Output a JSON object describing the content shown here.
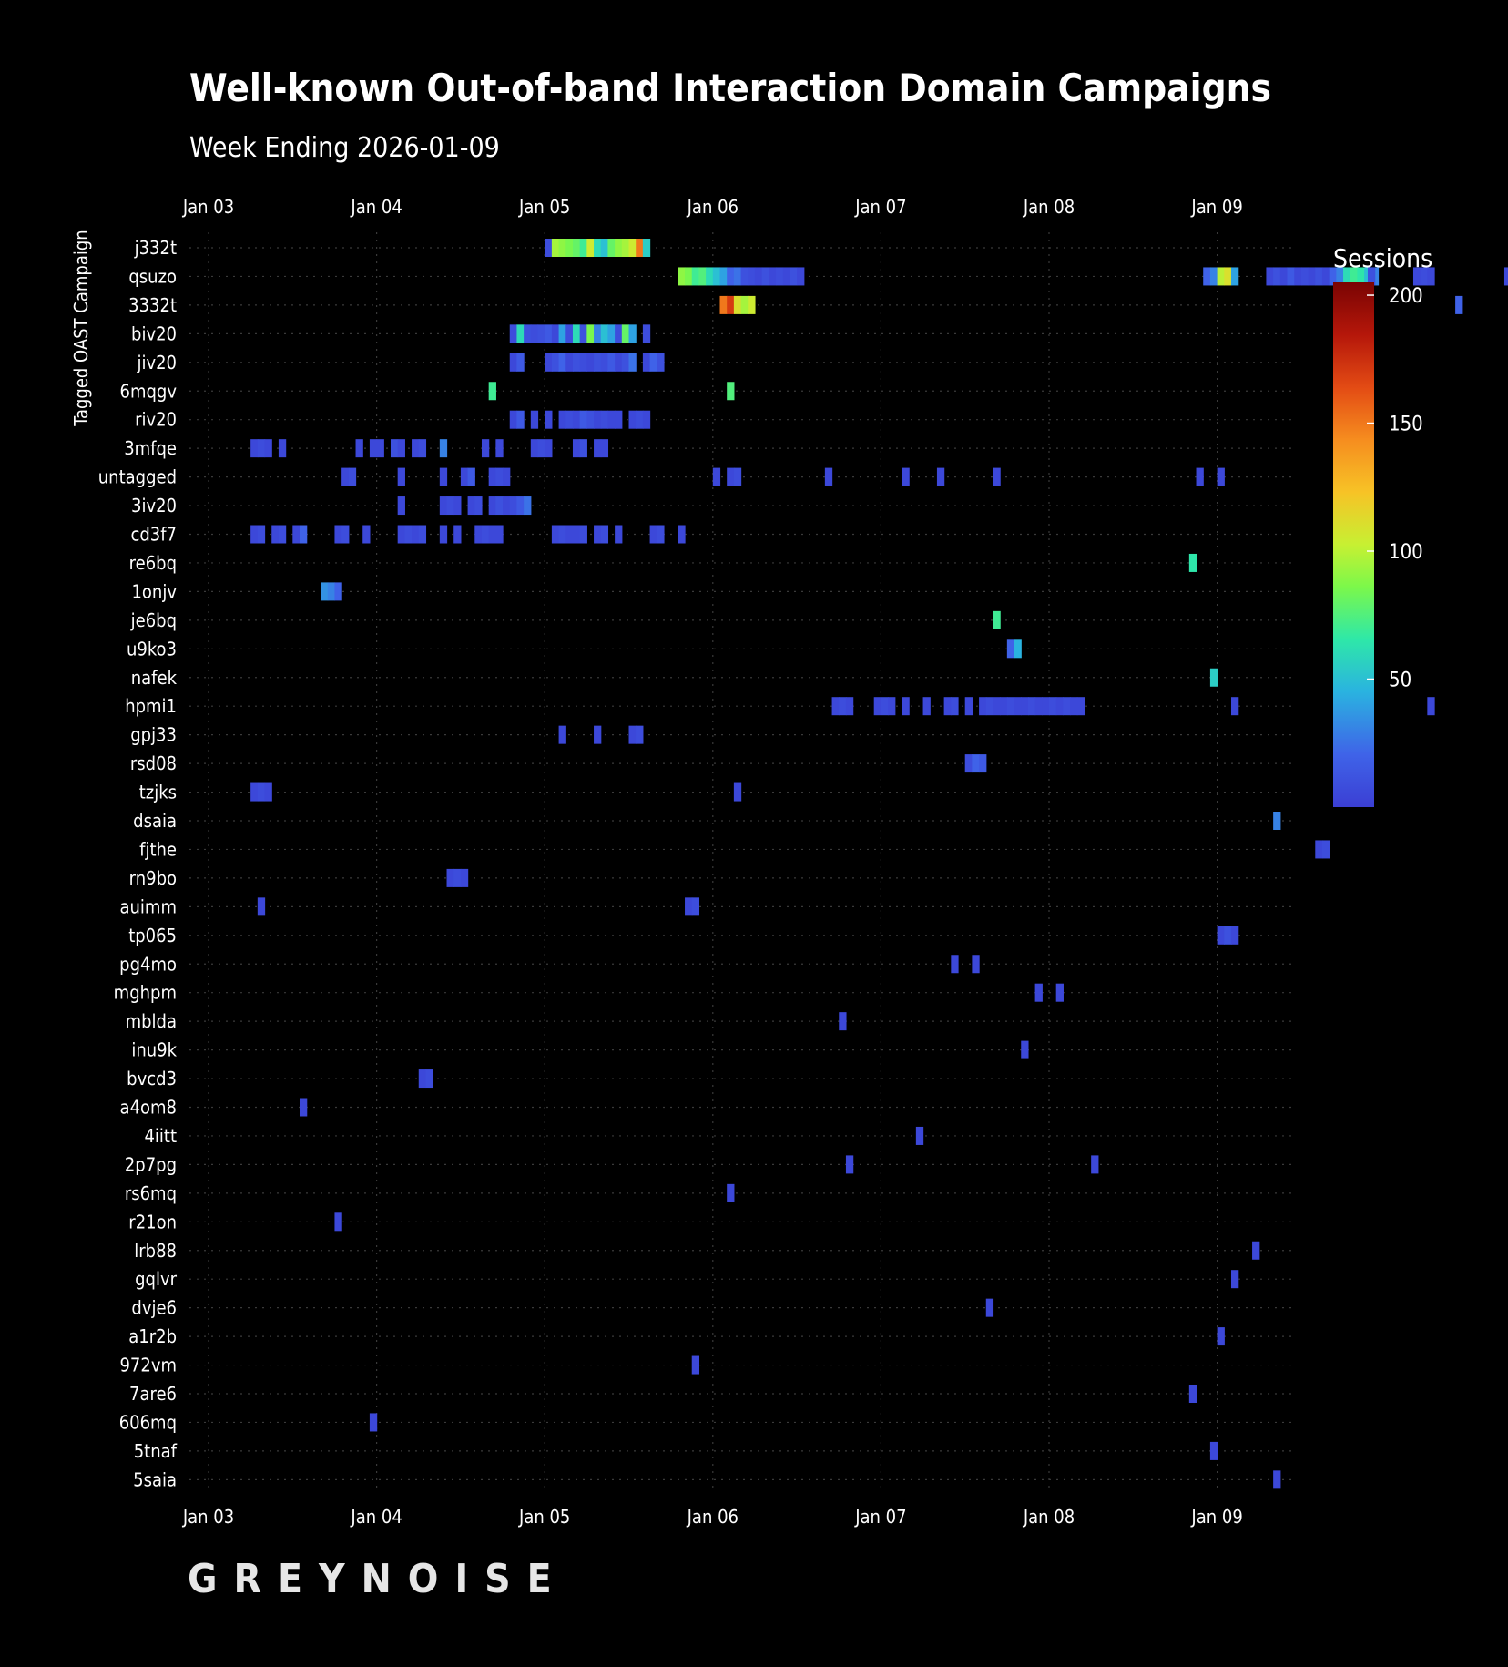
{
  "chart_data": {
    "type": "heatmap",
    "title": "Well-known Out-of-band Interaction Domain Campaigns",
    "subtitle": "Week Ending 2026-01-09",
    "ylabel": "Tagged OAST Campaign",
    "colorbar_label": "Sessions",
    "colorbar_ticks": [
      50,
      100,
      150,
      200
    ],
    "colorbar_range": [
      0,
      205
    ],
    "x_tick_labels": [
      "Jan 03",
      "Jan 04",
      "Jan 05",
      "Jan 06",
      "Jan 07",
      "Jan 08",
      "Jan 09"
    ],
    "x_range_hours": [
      -8,
      170
    ],
    "interval_hours": 1,
    "grid": true,
    "brand": "GREYNOISE",
    "campaigns": [
      {
        "name": "j332t",
        "cells": [
          [
            48,
            8
          ],
          [
            49,
            95
          ],
          [
            50,
            90
          ],
          [
            51,
            85
          ],
          [
            52,
            80
          ],
          [
            53,
            70
          ],
          [
            54,
            105
          ],
          [
            55,
            60
          ],
          [
            56,
            50
          ],
          [
            57,
            80
          ],
          [
            58,
            90
          ],
          [
            59,
            95
          ],
          [
            60,
            105
          ],
          [
            61,
            150
          ],
          [
            62,
            55
          ]
        ]
      },
      {
        "name": "qsuzo",
        "cells": [
          [
            67,
            90
          ],
          [
            68,
            85
          ],
          [
            69,
            70
          ],
          [
            70,
            75
          ],
          [
            71,
            60
          ],
          [
            72,
            50
          ],
          [
            73,
            40
          ],
          [
            74,
            20
          ],
          [
            75,
            25
          ],
          [
            76,
            10
          ],
          [
            77,
            8
          ],
          [
            78,
            5
          ],
          [
            79,
            10
          ],
          [
            80,
            5
          ],
          [
            81,
            8
          ],
          [
            82,
            5
          ],
          [
            83,
            10
          ],
          [
            84,
            5
          ],
          [
            142,
            20
          ],
          [
            143,
            30
          ],
          [
            144,
            100
          ],
          [
            145,
            110
          ],
          [
            146,
            40
          ],
          [
            151,
            5
          ],
          [
            152,
            10
          ],
          [
            153,
            5
          ],
          [
            154,
            15
          ],
          [
            155,
            5
          ],
          [
            156,
            8
          ],
          [
            157,
            5
          ],
          [
            158,
            10
          ],
          [
            159,
            5
          ],
          [
            160,
            20
          ],
          [
            161,
            30
          ],
          [
            162,
            60
          ],
          [
            163,
            70
          ],
          [
            164,
            65
          ],
          [
            165,
            50
          ],
          [
            166,
            30
          ],
          [
            165.5,
            10
          ],
          [
            172,
            5
          ],
          [
            173,
            8
          ],
          [
            174,
            5
          ],
          [
            185,
            5
          ],
          [
            186,
            8
          ]
        ]
      },
      {
        "name": "3332t",
        "cells": [
          [
            73,
            150
          ],
          [
            74,
            170
          ],
          [
            75,
            110
          ],
          [
            76,
            95
          ],
          [
            77,
            105
          ],
          [
            178,
            20
          ]
        ]
      },
      {
        "name": "biv20",
        "cells": [
          [
            43,
            8
          ],
          [
            44,
            60
          ],
          [
            45,
            10
          ],
          [
            46,
            8
          ],
          [
            47,
            10
          ],
          [
            48,
            15
          ],
          [
            49,
            5
          ],
          [
            50,
            40
          ],
          [
            51,
            8
          ],
          [
            52,
            60
          ],
          [
            53,
            10
          ],
          [
            54,
            85
          ],
          [
            55,
            30
          ],
          [
            56,
            50
          ],
          [
            57,
            40
          ],
          [
            58,
            8
          ],
          [
            59,
            80
          ],
          [
            60,
            40
          ],
          [
            62,
            8
          ]
        ]
      },
      {
        "name": "jiv20",
        "cells": [
          [
            43,
            5
          ],
          [
            44,
            15
          ],
          [
            48,
            5
          ],
          [
            49,
            10
          ],
          [
            50,
            20
          ],
          [
            51,
            5
          ],
          [
            52,
            10
          ],
          [
            53,
            8
          ],
          [
            54,
            5
          ],
          [
            55,
            10
          ],
          [
            56,
            8
          ],
          [
            57,
            15
          ],
          [
            58,
            5
          ],
          [
            59,
            10
          ],
          [
            60,
            25
          ],
          [
            62,
            5
          ],
          [
            63,
            20
          ],
          [
            64,
            10
          ]
        ]
      },
      {
        "name": "6mqgv",
        "cells": [
          [
            40,
            70
          ],
          [
            74,
            75
          ]
        ]
      },
      {
        "name": "riv20",
        "cells": [
          [
            43,
            5
          ],
          [
            44,
            15
          ],
          [
            46,
            5
          ],
          [
            48,
            5
          ],
          [
            50,
            5
          ],
          [
            51,
            8
          ],
          [
            52,
            5
          ],
          [
            53,
            15
          ],
          [
            54,
            10
          ],
          [
            55,
            5
          ],
          [
            56,
            8
          ],
          [
            57,
            5
          ],
          [
            58,
            5
          ],
          [
            60,
            5
          ],
          [
            61,
            8
          ],
          [
            62,
            5
          ]
        ]
      },
      {
        "name": "3mfqe",
        "cells": [
          [
            6,
            5
          ],
          [
            7,
            8
          ],
          [
            8,
            5
          ],
          [
            10,
            5
          ],
          [
            21,
            5
          ],
          [
            23,
            5
          ],
          [
            24,
            5
          ],
          [
            26,
            10
          ],
          [
            27,
            5
          ],
          [
            29,
            5
          ],
          [
            30,
            8
          ],
          [
            33,
            30
          ],
          [
            39,
            5
          ],
          [
            41,
            5
          ],
          [
            46,
            5
          ],
          [
            47,
            8
          ],
          [
            48,
            5
          ],
          [
            52,
            5
          ],
          [
            53,
            10
          ],
          [
            55,
            5
          ],
          [
            56,
            5
          ]
        ]
      },
      {
        "name": "untagged",
        "cells": [
          [
            19,
            5
          ],
          [
            20,
            8
          ],
          [
            27,
            5
          ],
          [
            33,
            5
          ],
          [
            36,
            5
          ],
          [
            37,
            15
          ],
          [
            40,
            5
          ],
          [
            41,
            8
          ],
          [
            42,
            5
          ],
          [
            72,
            5
          ],
          [
            74,
            5
          ],
          [
            75,
            8
          ],
          [
            88,
            5
          ],
          [
            99,
            5
          ],
          [
            104,
            5
          ],
          [
            112,
            5
          ],
          [
            141,
            5
          ],
          [
            144,
            5
          ]
        ]
      },
      {
        "name": "3iv20",
        "cells": [
          [
            27,
            5
          ],
          [
            33,
            5
          ],
          [
            34,
            8
          ],
          [
            35,
            5
          ],
          [
            37,
            5
          ],
          [
            38,
            8
          ],
          [
            40,
            5
          ],
          [
            41,
            10
          ],
          [
            42,
            5
          ],
          [
            43,
            8
          ],
          [
            44,
            15
          ],
          [
            45,
            25
          ]
        ]
      },
      {
        "name": "cd3f7",
        "cells": [
          [
            6,
            5
          ],
          [
            7,
            8
          ],
          [
            9,
            5
          ],
          [
            10,
            8
          ],
          [
            12,
            5
          ],
          [
            13,
            20
          ],
          [
            18,
            5
          ],
          [
            19,
            8
          ],
          [
            22,
            5
          ],
          [
            27,
            5
          ],
          [
            28,
            8
          ],
          [
            29,
            5
          ],
          [
            30,
            8
          ],
          [
            33,
            5
          ],
          [
            35,
            5
          ],
          [
            38,
            5
          ],
          [
            39,
            8
          ],
          [
            40,
            5
          ],
          [
            41,
            5
          ],
          [
            49,
            5
          ],
          [
            50,
            8
          ],
          [
            51,
            5
          ],
          [
            52,
            5
          ],
          [
            53,
            8
          ],
          [
            55,
            5
          ],
          [
            56,
            8
          ],
          [
            58,
            5
          ],
          [
            63,
            5
          ],
          [
            64,
            8
          ],
          [
            67,
            5
          ]
        ]
      },
      {
        "name": "re6bq",
        "cells": [
          [
            140,
            65
          ]
        ]
      },
      {
        "name": "1onjv",
        "cells": [
          [
            16,
            35
          ],
          [
            17,
            30
          ],
          [
            18,
            20
          ]
        ]
      },
      {
        "name": "je6bq",
        "cells": [
          [
            112,
            70
          ]
        ]
      },
      {
        "name": "u9ko3",
        "cells": [
          [
            114,
            20
          ],
          [
            115,
            45
          ]
        ]
      },
      {
        "name": "nafek",
        "cells": [
          [
            143,
            55
          ]
        ]
      },
      {
        "name": "hpmi1",
        "cells": [
          [
            89,
            5
          ],
          [
            90,
            8
          ],
          [
            91,
            5
          ],
          [
            95,
            5
          ],
          [
            96,
            8
          ],
          [
            97,
            5
          ],
          [
            99,
            5
          ],
          [
            102,
            5
          ],
          [
            105,
            5
          ],
          [
            106,
            8
          ],
          [
            108,
            5
          ],
          [
            110,
            5
          ],
          [
            111,
            8
          ],
          [
            112,
            5
          ],
          [
            113,
            5
          ],
          [
            114,
            8
          ],
          [
            115,
            5
          ],
          [
            116,
            5
          ],
          [
            117,
            8
          ],
          [
            118,
            5
          ],
          [
            119,
            5
          ],
          [
            120,
            8
          ],
          [
            121,
            5
          ],
          [
            122,
            8
          ],
          [
            123,
            5
          ],
          [
            124,
            5
          ],
          [
            146,
            5
          ],
          [
            174,
            5
          ]
        ]
      },
      {
        "name": "gpj33",
        "cells": [
          [
            50,
            5
          ],
          [
            55,
            5
          ],
          [
            60,
            5
          ],
          [
            61,
            8
          ]
        ]
      },
      {
        "name": "rsd08",
        "cells": [
          [
            108,
            8
          ],
          [
            109,
            20
          ],
          [
            110,
            15
          ]
        ]
      },
      {
        "name": "tzjks",
        "cells": [
          [
            6,
            5
          ],
          [
            7,
            8
          ],
          [
            8,
            5
          ],
          [
            75,
            5
          ]
        ]
      },
      {
        "name": "dsaia",
        "cells": [
          [
            152,
            30
          ]
        ]
      },
      {
        "name": "fjthe",
        "cells": [
          [
            158,
            5
          ],
          [
            159,
            8
          ]
        ]
      },
      {
        "name": "rn9bo",
        "cells": [
          [
            34,
            5
          ],
          [
            35,
            8
          ],
          [
            36,
            5
          ]
        ]
      },
      {
        "name": "auimm",
        "cells": [
          [
            7,
            5
          ],
          [
            68,
            5
          ],
          [
            69,
            8
          ]
        ]
      },
      {
        "name": "tp065",
        "cells": [
          [
            144,
            5
          ],
          [
            145,
            10
          ],
          [
            146,
            5
          ]
        ]
      },
      {
        "name": "pg4mo",
        "cells": [
          [
            106,
            5
          ],
          [
            109,
            5
          ]
        ]
      },
      {
        "name": "mghpm",
        "cells": [
          [
            118,
            5
          ],
          [
            121,
            5
          ]
        ]
      },
      {
        "name": "mblda",
        "cells": [
          [
            90,
            5
          ]
        ]
      },
      {
        "name": "inu9k",
        "cells": [
          [
            116,
            5
          ]
        ]
      },
      {
        "name": "bvcd3",
        "cells": [
          [
            30,
            5
          ],
          [
            31,
            8
          ]
        ]
      },
      {
        "name": "a4om8",
        "cells": [
          [
            13,
            5
          ]
        ]
      },
      {
        "name": "4iitt",
        "cells": [
          [
            101,
            5
          ]
        ]
      },
      {
        "name": "2p7pg",
        "cells": [
          [
            91,
            5
          ],
          [
            126,
            5
          ]
        ]
      },
      {
        "name": "rs6mq",
        "cells": [
          [
            74,
            5
          ]
        ]
      },
      {
        "name": "r21on",
        "cells": [
          [
            18,
            5
          ]
        ]
      },
      {
        "name": "lrb88",
        "cells": [
          [
            149,
            5
          ]
        ]
      },
      {
        "name": "gqlvr",
        "cells": [
          [
            146,
            5
          ]
        ]
      },
      {
        "name": "dvje6",
        "cells": [
          [
            111,
            5
          ]
        ]
      },
      {
        "name": "a1r2b",
        "cells": [
          [
            144,
            5
          ]
        ]
      },
      {
        "name": "972vm",
        "cells": [
          [
            69,
            5
          ]
        ]
      },
      {
        "name": "7are6",
        "cells": [
          [
            140,
            5
          ]
        ]
      },
      {
        "name": "606mq",
        "cells": [
          [
            23,
            5
          ]
        ]
      },
      {
        "name": "5tnaf",
        "cells": [
          [
            143,
            5
          ]
        ]
      },
      {
        "name": "5saia",
        "cells": [
          [
            152,
            5
          ]
        ]
      }
    ]
  }
}
